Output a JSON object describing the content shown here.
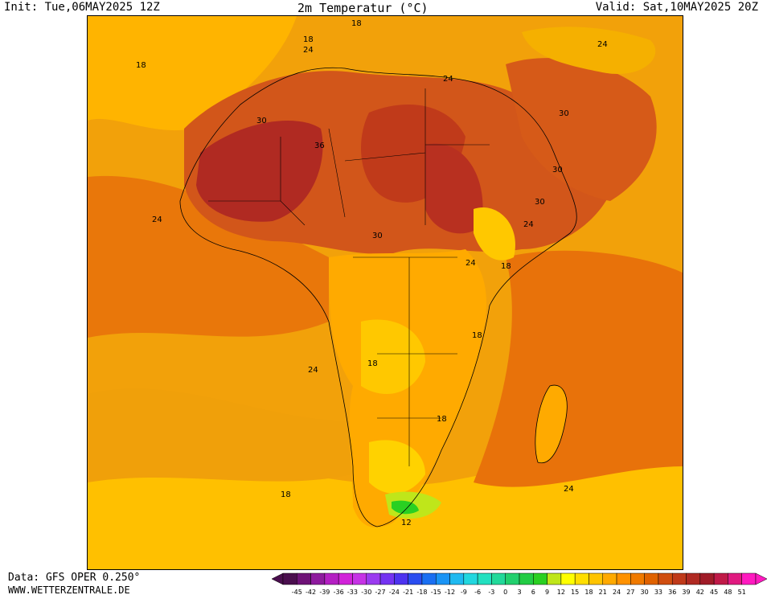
{
  "header": {
    "init": "Init: Tue,06MAY2025 12Z",
    "title": "2m Temperatur (°C)",
    "valid": "Valid: Sat,10MAY2025 20Z"
  },
  "footer": {
    "source": "Data: GFS OPER 0.250°",
    "site": "WWW.WETTERZENTRALE.DE"
  },
  "map": {
    "region": "Africa",
    "contour_labels": [
      "18",
      "18",
      "24",
      "18",
      "24",
      "30",
      "36",
      "24",
      "30",
      "30",
      "30",
      "24",
      "30",
      "24",
      "18",
      "18",
      "18",
      "24",
      "18",
      "24",
      "18",
      "12",
      "24"
    ]
  },
  "colorbar": {
    "ticks": [
      "-45",
      "-42",
      "-39",
      "-36",
      "-33",
      "-30",
      "-27",
      "-24",
      "-21",
      "-18",
      "-15",
      "-12",
      "-9",
      "-6",
      "-3",
      "0",
      "3",
      "6",
      "9",
      "12",
      "15",
      "18",
      "21",
      "24",
      "27",
      "30",
      "33",
      "36",
      "39",
      "42",
      "45",
      "48",
      "51"
    ],
    "colors": [
      "#4a0e4e",
      "#6e1277",
      "#8e1a9e",
      "#b41fc3",
      "#d122d9",
      "#c633e6",
      "#9b3bf0",
      "#7433f2",
      "#4d33f0",
      "#2a4df0",
      "#1a6ff2",
      "#1a94f5",
      "#1fb9f0",
      "#22d7df",
      "#22e0c0",
      "#22d99a",
      "#22d06e",
      "#22cc44",
      "#2ad022",
      "#bfe61a",
      "#ffff00",
      "#ffde00",
      "#ffc400",
      "#ffaa00",
      "#ff9200",
      "#f07a00",
      "#e06200",
      "#d04e10",
      "#c03a1a",
      "#b02a22",
      "#a01c28",
      "#c01a48",
      "#e01a80",
      "#ff1ac0"
    ]
  }
}
